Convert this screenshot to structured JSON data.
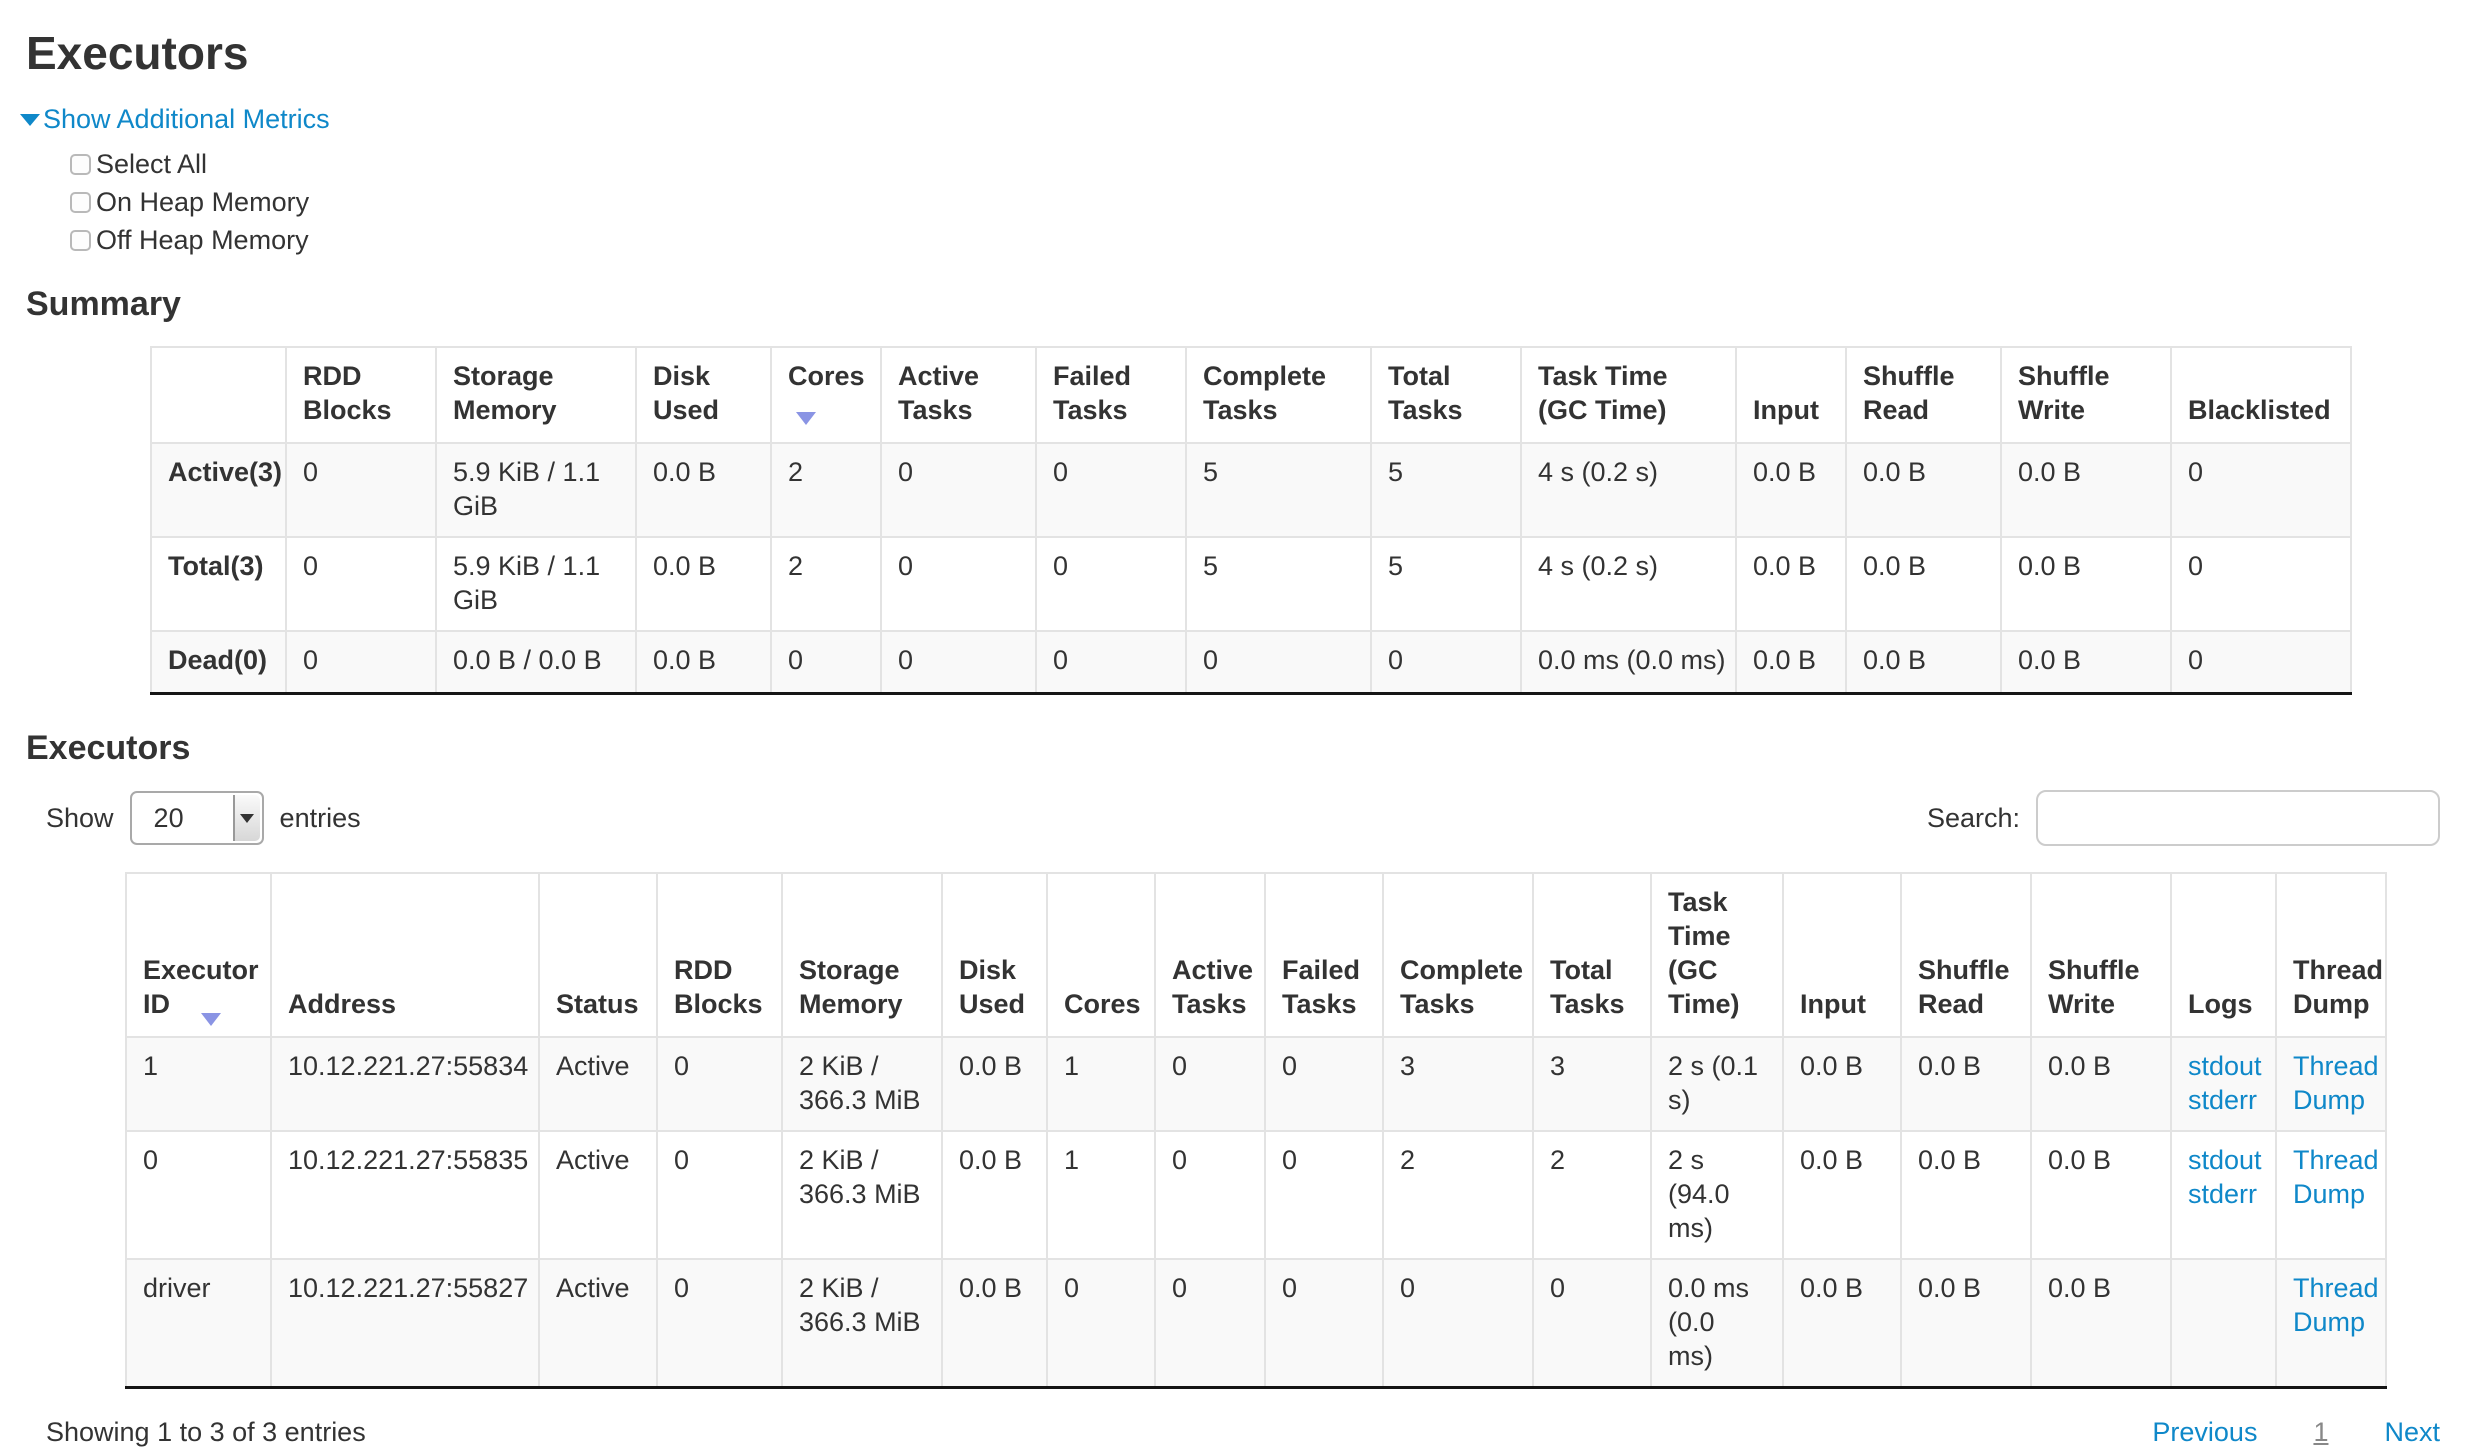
{
  "page": {
    "title": "Executors"
  },
  "metrics": {
    "toggle_label": "Show Additional Metrics",
    "checkboxes": [
      {
        "label": "Select All",
        "checked": false
      },
      {
        "label": "On Heap Memory",
        "checked": false
      },
      {
        "label": "Off Heap Memory",
        "checked": false
      }
    ]
  },
  "summary": {
    "heading": "Summary",
    "columns": [
      "",
      "RDD Blocks",
      "Storage Memory",
      "Disk Used",
      "Cores",
      "Active Tasks",
      "Failed Tasks",
      "Complete Tasks",
      "Total Tasks",
      "Task Time (GC Time)",
      "Input",
      "Shuffle Read",
      "Shuffle Write",
      "Blacklisted"
    ],
    "sorted_column": "Cores",
    "rows": [
      {
        "label": "Active(3)",
        "values": [
          "0",
          "5.9 KiB / 1.1 GiB",
          "0.0 B",
          "2",
          "0",
          "0",
          "5",
          "5",
          "4 s (0.2 s)",
          "0.0 B",
          "0.0 B",
          "0.0 B",
          "0"
        ]
      },
      {
        "label": "Total(3)",
        "values": [
          "0",
          "5.9 KiB / 1.1 GiB",
          "0.0 B",
          "2",
          "0",
          "0",
          "5",
          "5",
          "4 s (0.2 s)",
          "0.0 B",
          "0.0 B",
          "0.0 B",
          "0"
        ]
      },
      {
        "label": "Dead(0)",
        "values": [
          "0",
          "0.0 B / 0.0 B",
          "0.0 B",
          "0",
          "0",
          "0",
          "0",
          "0",
          "0.0 ms (0.0 ms)",
          "0.0 B",
          "0.0 B",
          "0.0 B",
          "0"
        ]
      }
    ]
  },
  "executors": {
    "heading": "Executors",
    "show_label": "Show",
    "entries_value": "20",
    "entries_label": "entries",
    "search_label": "Search:",
    "search_value": "",
    "columns": [
      "Executor ID",
      "Address",
      "Status",
      "RDD Blocks",
      "Storage Memory",
      "Disk Used",
      "Cores",
      "Active Tasks",
      "Failed Tasks",
      "Complete Tasks",
      "Total Tasks",
      "Task Time (GC Time)",
      "Input",
      "Shuffle Read",
      "Shuffle Write",
      "Logs",
      "Thread Dump"
    ],
    "sorted_column": "Executor ID",
    "rows": [
      {
        "id": "1",
        "address": "10.12.221.27:55834",
        "status": "Active",
        "rdd_blocks": "0",
        "storage_memory": "2 KiB / 366.3 MiB",
        "disk_used": "0.0 B",
        "cores": "1",
        "active_tasks": "0",
        "failed_tasks": "0",
        "complete_tasks": "3",
        "total_tasks": "3",
        "task_time": "2 s (0.1 s)",
        "input": "0.0 B",
        "shuffle_read": "0.0 B",
        "shuffle_write": "0.0 B",
        "logs": [
          "stdout",
          "stderr"
        ],
        "thread_dump": "Thread Dump"
      },
      {
        "id": "0",
        "address": "10.12.221.27:55835",
        "status": "Active",
        "rdd_blocks": "0",
        "storage_memory": "2 KiB / 366.3 MiB",
        "disk_used": "0.0 B",
        "cores": "1",
        "active_tasks": "0",
        "failed_tasks": "0",
        "complete_tasks": "2",
        "total_tasks": "2",
        "task_time": "2 s (94.0 ms)",
        "input": "0.0 B",
        "shuffle_read": "0.0 B",
        "shuffle_write": "0.0 B",
        "logs": [
          "stdout",
          "stderr"
        ],
        "thread_dump": "Thread Dump"
      },
      {
        "id": "driver",
        "address": "10.12.221.27:55827",
        "status": "Active",
        "rdd_blocks": "0",
        "storage_memory": "2 KiB / 366.3 MiB",
        "disk_used": "0.0 B",
        "cores": "0",
        "active_tasks": "0",
        "failed_tasks": "0",
        "complete_tasks": "0",
        "total_tasks": "0",
        "task_time": "0.0 ms (0.0 ms)",
        "input": "0.0 B",
        "shuffle_read": "0.0 B",
        "shuffle_write": "0.0 B",
        "logs": [],
        "thread_dump": "Thread Dump"
      }
    ],
    "footer": {
      "showing": "Showing 1 to 3 of 3 entries",
      "previous": "Previous",
      "page": "1",
      "next": "Next"
    }
  },
  "colors": {
    "link": "#0f88c9",
    "sort_arrow": "#8a94e4"
  }
}
